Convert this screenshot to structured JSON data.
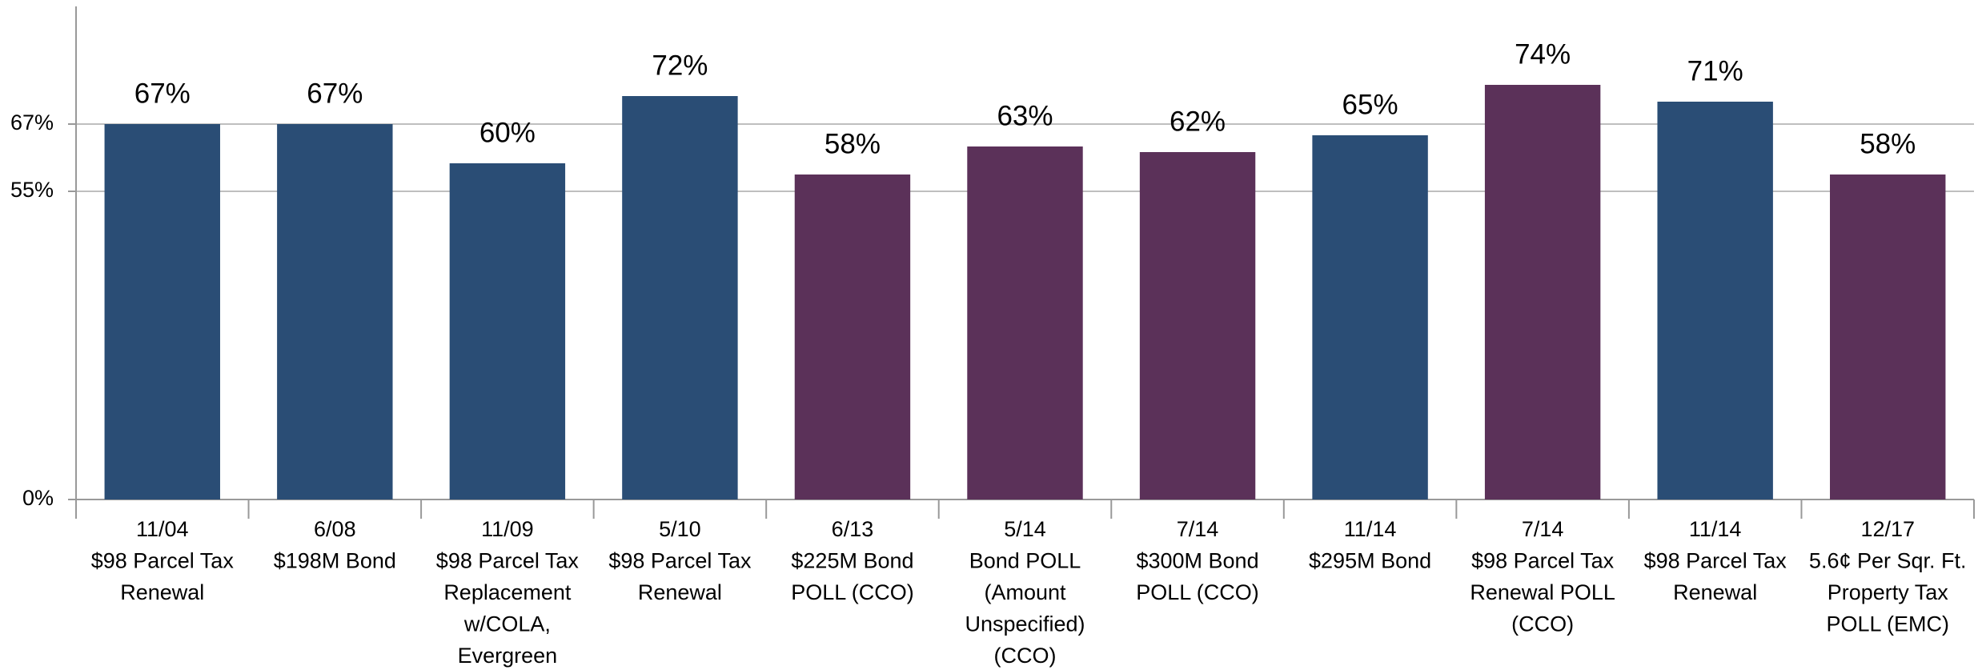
{
  "chart_data": {
    "type": "bar",
    "categories": [
      "11/04\n$98 Parcel Tax\nRenewal",
      "6/08\n$198M Bond",
      "11/09\n$98 Parcel Tax\nReplacement\nw/COLA,\nEvergreen",
      "5/10\n$98 Parcel Tax\nRenewal",
      "6/13\n$225M Bond\nPOLL (CCO)",
      "5/14\nBond POLL\n(Amount\nUnspecified)\n(CCO)",
      "7/14\n$300M Bond\nPOLL (CCO)",
      "11/14\n$295M Bond",
      "7/14\n$98 Parcel Tax\nRenewal POLL\n(CCO)",
      "11/14\n$98 Parcel Tax\nRenewal",
      "12/17\n5.6¢ Per Sqr. Ft.\nProperty Tax\nPOLL (EMC)"
    ],
    "values": [
      67,
      67,
      60,
      72,
      58,
      63,
      62,
      65,
      74,
      71,
      58
    ],
    "value_labels": [
      "67%",
      "67%",
      "60%",
      "72%",
      "58%",
      "63%",
      "62%",
      "65%",
      "74%",
      "71%",
      "58%"
    ],
    "colors": [
      "#2a4d75",
      "#2a4d75",
      "#2a4d75",
      "#2a4d75",
      "#5b3159",
      "#5b3159",
      "#5b3159",
      "#2a4d75",
      "#5b3159",
      "#2a4d75",
      "#5b3159"
    ],
    "ylim": [
      0,
      88
    ],
    "yticks": [
      {
        "value": 0,
        "label": "0%"
      },
      {
        "value": 55,
        "label": "55%"
      },
      {
        "value": 67,
        "label": "67%"
      }
    ],
    "grid": true
  }
}
